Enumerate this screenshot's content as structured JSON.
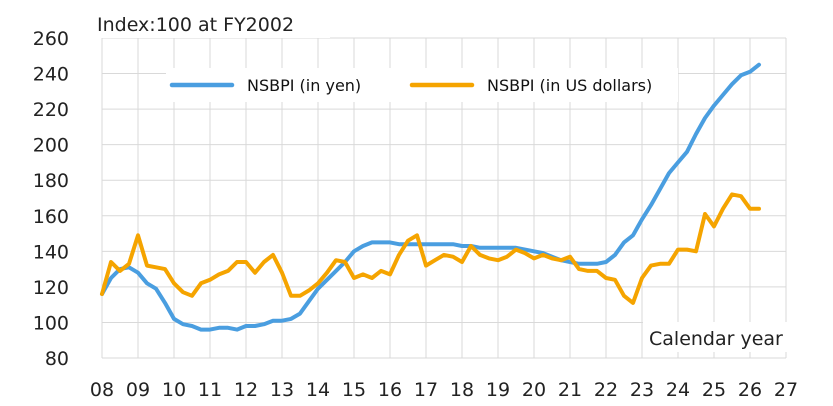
{
  "chart_data": {
    "type": "line",
    "title": "",
    "ylabel": "Index:100 at FY2002",
    "xlabel": "Calendar year",
    "ylim": [
      80,
      260
    ],
    "xlim": [
      8,
      27
    ],
    "yticks": [
      80,
      100,
      120,
      140,
      160,
      180,
      200,
      220,
      240,
      260
    ],
    "xticks": [
      "08",
      "09",
      "10",
      "11",
      "12",
      "13",
      "14",
      "15",
      "16",
      "17",
      "18",
      "19",
      "20",
      "21",
      "22",
      "23",
      "24",
      "25",
      "26",
      "27"
    ],
    "grid": "on",
    "legend": "top-center",
    "series": [
      {
        "name": "NSBPI (in yen)",
        "color": "#4a9ee0",
        "x": [
          8.0,
          8.25,
          8.5,
          8.75,
          9.0,
          9.25,
          9.5,
          9.75,
          10.0,
          10.25,
          10.5,
          10.75,
          11.0,
          11.25,
          11.5,
          11.75,
          12.0,
          12.25,
          12.5,
          12.75,
          13.0,
          13.25,
          13.5,
          13.75,
          14.0,
          14.25,
          14.5,
          14.75,
          15.0,
          15.25,
          15.5,
          15.75,
          16.0,
          16.25,
          16.5,
          16.75,
          17.0,
          17.25,
          17.5,
          17.75,
          18.0,
          18.25,
          18.5,
          18.75,
          19.0,
          19.25,
          19.5,
          19.75,
          20.0,
          20.25,
          20.5,
          20.75,
          21.0,
          21.25,
          21.5,
          21.75,
          22.0,
          22.25,
          22.5,
          22.75,
          23.0,
          23.25,
          23.5,
          23.75,
          24.0,
          24.25,
          24.5,
          24.75,
          25.0,
          25.25,
          25.5,
          25.75,
          26.0,
          26.25
        ],
        "values": [
          116,
          125,
          130,
          131,
          128,
          122,
          119,
          111,
          102,
          99,
          98,
          96,
          96,
          97,
          97,
          96,
          98,
          98,
          99,
          101,
          101,
          102,
          105,
          112,
          119,
          124,
          129,
          134,
          140,
          143,
          145,
          145,
          145,
          144,
          144,
          144,
          144,
          144,
          144,
          144,
          143,
          143,
          142,
          142,
          142,
          142,
          142,
          141,
          140,
          139,
          137,
          135,
          134,
          133,
          133,
          133,
          134,
          138,
          145,
          149,
          158,
          166,
          175,
          184,
          190,
          196,
          206,
          215,
          222,
          228,
          234,
          239,
          241,
          245
        ]
      },
      {
        "name": "NSBPI (in US dollars)",
        "color": "#f5a400",
        "x": [
          8.0,
          8.25,
          8.5,
          8.75,
          9.0,
          9.25,
          9.5,
          9.75,
          10.0,
          10.25,
          10.5,
          10.75,
          11.0,
          11.25,
          11.5,
          11.75,
          12.0,
          12.25,
          12.5,
          12.75,
          13.0,
          13.25,
          13.5,
          13.75,
          14.0,
          14.25,
          14.5,
          14.75,
          15.0,
          15.25,
          15.5,
          15.75,
          16.0,
          16.25,
          16.5,
          16.75,
          17.0,
          17.25,
          17.5,
          17.75,
          18.0,
          18.25,
          18.5,
          18.75,
          19.0,
          19.25,
          19.5,
          19.75,
          20.0,
          20.25,
          20.5,
          20.75,
          21.0,
          21.25,
          21.5,
          21.75,
          22.0,
          22.25,
          22.5,
          22.75,
          23.0,
          23.25,
          23.5,
          23.75,
          24.0,
          24.25,
          24.5,
          24.75,
          25.0,
          25.25,
          25.5,
          25.75,
          26.0,
          26.25
        ],
        "values": [
          116,
          134,
          129,
          133,
          149,
          132,
          131,
          130,
          122,
          117,
          115,
          122,
          124,
          127,
          129,
          134,
          134,
          128,
          134,
          138,
          128,
          115,
          115,
          118,
          122,
          128,
          135,
          134,
          125,
          127,
          125,
          129,
          127,
          138,
          146,
          149,
          132,
          135,
          138,
          137,
          134,
          143,
          138,
          136,
          135,
          137,
          141,
          139,
          136,
          138,
          136,
          135,
          137,
          130,
          129,
          129,
          125,
          124,
          115,
          111,
          125,
          132,
          133,
          133,
          141,
          141,
          140,
          161,
          154,
          164,
          172,
          171,
          164,
          164
        ]
      }
    ]
  }
}
